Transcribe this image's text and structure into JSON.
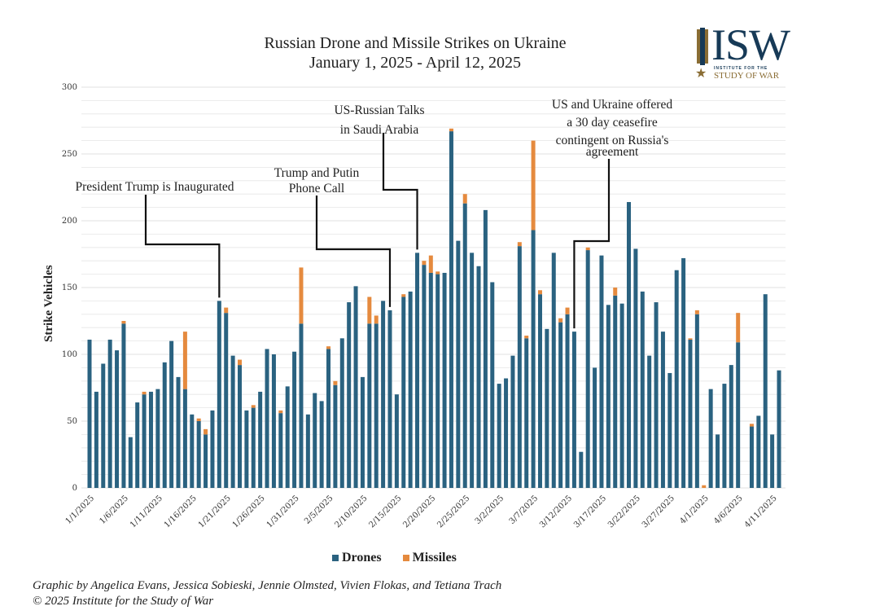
{
  "header": {
    "title_line1": "Russian Drone and Missile Strikes on Ukraine",
    "title_line2": "January 1, 2025 - April 12, 2025"
  },
  "logo": {
    "main": "ISW",
    "sub_small": "INSTITUTE FOR THE",
    "sub_large": "STUDY OF WAR",
    "icon": "star-icon"
  },
  "colors": {
    "drones": "#2a6280",
    "missiles": "#e58a3e",
    "grid": "#e6e6e6",
    "annotation_line": "#111111"
  },
  "legend": {
    "drones_label": "Drones",
    "missiles_label": "Missiles"
  },
  "footer": {
    "credit_line1": "Graphic by Angelica Evans, Jessica Sobieski, Jennie Olmsted, Vivien Flokas, and Tetiana Trach",
    "credit_line2": "© 2025 Institute for the Study of War"
  },
  "chart_data": {
    "type": "bar",
    "stacked": true,
    "title": "Russian Drone and Missile Strikes on Ukraine",
    "subtitle": "January 1, 2025 - April 12, 2025",
    "xlabel": "",
    "ylabel": "Strike Vehicles",
    "ylim": [
      0,
      300
    ],
    "yticks": [
      0,
      50,
      100,
      150,
      200,
      250,
      300
    ],
    "grid": true,
    "legend_position": "bottom-center",
    "xtick_labels": [
      "1/1/2025",
      "1/6/2025",
      "1/11/2025",
      "1/16/2025",
      "1/21/2025",
      "1/26/2025",
      "1/31/2025",
      "2/5/2025",
      "2/10/2025",
      "2/15/2025",
      "2/20/2025",
      "2/25/2025",
      "3/2/2025",
      "3/7/2025",
      "3/12/2025",
      "3/17/2025",
      "3/22/2025",
      "3/27/2025",
      "4/1/2025",
      "4/6/2025",
      "4/11/2025"
    ],
    "categories": [
      "1/1",
      "1/2",
      "1/3",
      "1/4",
      "1/5",
      "1/6",
      "1/7",
      "1/8",
      "1/9",
      "1/10",
      "1/11",
      "1/12",
      "1/13",
      "1/14",
      "1/15",
      "1/16",
      "1/17",
      "1/18",
      "1/19",
      "1/20",
      "1/21",
      "1/22",
      "1/23",
      "1/24",
      "1/25",
      "1/26",
      "1/27",
      "1/28",
      "1/29",
      "1/30",
      "1/31",
      "2/1",
      "2/2",
      "2/3",
      "2/4",
      "2/5",
      "2/6",
      "2/7",
      "2/8",
      "2/9",
      "2/10",
      "2/11",
      "2/12",
      "2/13",
      "2/14",
      "2/15",
      "2/16",
      "2/17",
      "2/18",
      "2/19",
      "2/20",
      "2/21",
      "2/22",
      "2/23",
      "2/24",
      "2/25",
      "2/26",
      "2/27",
      "2/28",
      "3/1",
      "3/2",
      "3/3",
      "3/4",
      "3/5",
      "3/6",
      "3/7",
      "3/8",
      "3/9",
      "3/10",
      "3/11",
      "3/12",
      "3/13",
      "3/14",
      "3/15",
      "3/16",
      "3/17",
      "3/18",
      "3/19",
      "3/20",
      "3/21",
      "3/22",
      "3/23",
      "3/24",
      "3/25",
      "3/26",
      "3/27",
      "3/28",
      "3/29",
      "3/30",
      "3/31",
      "4/1",
      "4/2",
      "4/3",
      "4/4",
      "4/5",
      "4/6",
      "4/7",
      "4/8",
      "4/9",
      "4/10",
      "4/11",
      "4/12"
    ],
    "series": [
      {
        "name": "Drones",
        "values": [
          111,
          72,
          93,
          111,
          103,
          123,
          38,
          64,
          70,
          72,
          74,
          94,
          110,
          83,
          74,
          55,
          50,
          40,
          58,
          140,
          131,
          99,
          92,
          58,
          60,
          72,
          104,
          100,
          56,
          76,
          102,
          123,
          55,
          71,
          65,
          104,
          77,
          112,
          139,
          151,
          83,
          123,
          123,
          140,
          133,
          70,
          143,
          147,
          176,
          167,
          161,
          160,
          161,
          267,
          185,
          213,
          176,
          166,
          208,
          154,
          78,
          82,
          99,
          181,
          112,
          193,
          145,
          119,
          176,
          124,
          130,
          117,
          27,
          178,
          90,
          174,
          137,
          144,
          138,
          214,
          179,
          147,
          99,
          139,
          117,
          86,
          163,
          172,
          111,
          130,
          0,
          74,
          40,
          78,
          92,
          109,
          0,
          46,
          54,
          145,
          40,
          88
        ]
      },
      {
        "name": "Missiles",
        "values": [
          0,
          0,
          0,
          0,
          0,
          2,
          0,
          0,
          2,
          0,
          0,
          0,
          0,
          0,
          43,
          0,
          2,
          4,
          0,
          0,
          4,
          0,
          4,
          0,
          2,
          0,
          0,
          0,
          2,
          0,
          0,
          42,
          0,
          0,
          0,
          2,
          3,
          0,
          0,
          0,
          0,
          20,
          6,
          0,
          0,
          0,
          2,
          0,
          0,
          3,
          13,
          2,
          0,
          2,
          0,
          7,
          0,
          0,
          0,
          0,
          0,
          0,
          0,
          3,
          2,
          67,
          3,
          0,
          0,
          3,
          5,
          0,
          0,
          2,
          0,
          0,
          0,
          6,
          0,
          0,
          0,
          0,
          0,
          0,
          0,
          0,
          0,
          0,
          1,
          3,
          2,
          0,
          0,
          0,
          0,
          22,
          0,
          2,
          0,
          0,
          0,
          0
        ]
      }
    ],
    "annotations": [
      {
        "text_lines": [
          "President Trump is Inaugurated"
        ],
        "date": "1/20"
      },
      {
        "text_lines": [
          "Trump and Putin",
          "Phone Call"
        ],
        "date": "2/14"
      },
      {
        "text_lines": [
          "US-Russian Talks",
          "in Saudi Arabia"
        ],
        "date": "2/18"
      },
      {
        "text_lines": [
          "US and Ukraine offered",
          "a 30 day ceasefire",
          "contingent on Russia's",
          "agreement"
        ],
        "date": "3/13"
      }
    ]
  }
}
